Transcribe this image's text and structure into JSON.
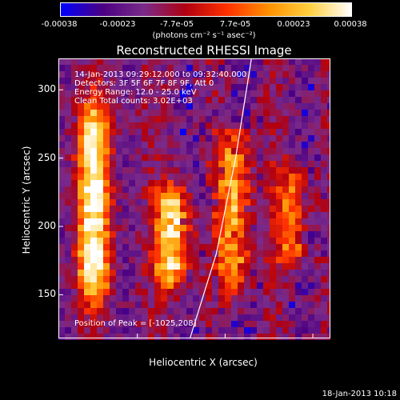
{
  "colorbar": {
    "ticks": [
      "-0.00038",
      "-0.00023",
      "-7.7e-05",
      "7.7e-05",
      "0.00023",
      "0.00038"
    ],
    "label": "(photons cm⁻² s⁻¹ asec⁻²)",
    "colors": [
      "#0000ff",
      "#4b0082",
      "#7a2a8a",
      "#b00010",
      "#ff3000",
      "#ff9000",
      "#ffd040",
      "#ffffff"
    ]
  },
  "chart_data": {
    "type": "heatmap",
    "title": "Reconstructed RHESSI Image",
    "xlabel": "Heliocentric X (arcsec)",
    "ylabel": "Heliocentric Y (arcsec)",
    "xlim": [
      -1045,
      -890
    ],
    "ylim": [
      118,
      323
    ],
    "xticks": [
      -1000,
      -950,
      -900
    ],
    "yticks": [
      150,
      200,
      250,
      300
    ],
    "annotations": [
      "14-Jan-2013 09:29:12.000 to 09:32:40.000",
      "Detectors: 3F 5F 6F 7F 8F 9F, Att 0",
      "Energy Range: 12.0 - 25.0 keV",
      "Clean     Total counts: 3.02E+03"
    ],
    "peak_label": "Position of Peak = [-1025,208]",
    "bright_bands": [
      {
        "x": -1025,
        "y_min": 145,
        "y_max": 290,
        "intensity": 1.0
      },
      {
        "x": -980,
        "y_min": 155,
        "y_max": 230,
        "intensity": 0.95
      },
      {
        "x": -945,
        "y_min": 150,
        "y_max": 270,
        "intensity": 0.75
      },
      {
        "x": -912,
        "y_min": 170,
        "y_max": 245,
        "intensity": 0.55
      }
    ]
  },
  "footer_date": "18-Jan-2013 10:18"
}
